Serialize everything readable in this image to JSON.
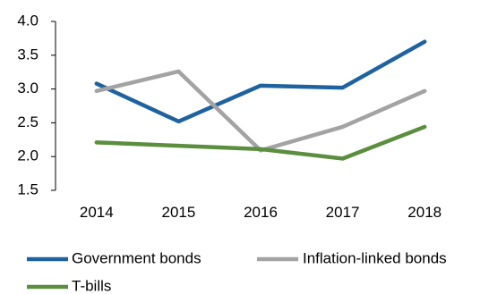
{
  "chart_data": {
    "type": "line",
    "categories": [
      "2014",
      "2015",
      "2016",
      "2017",
      "2018"
    ],
    "ylim": [
      1.5,
      4.0
    ],
    "yticks": [
      "4.0",
      "3.5",
      "3.0",
      "2.5",
      "2.0",
      "1.5"
    ],
    "ytick_values": [
      4.0,
      3.5,
      3.0,
      2.5,
      2.0,
      1.5
    ],
    "grid": false,
    "legend_position": "bottom",
    "series": [
      {
        "name": "Government bonds",
        "color": "#1f62a0",
        "values": [
          3.08,
          2.52,
          3.05,
          3.02,
          3.7
        ]
      },
      {
        "name": "Inflation-linked bonds",
        "color": "#a3a3a3",
        "values": [
          2.97,
          3.26,
          2.09,
          2.44,
          2.97
        ]
      },
      {
        "name": "T-bills",
        "color": "#5b8e3e",
        "values": [
          2.21,
          2.16,
          2.11,
          1.97,
          2.44
        ]
      }
    ]
  }
}
